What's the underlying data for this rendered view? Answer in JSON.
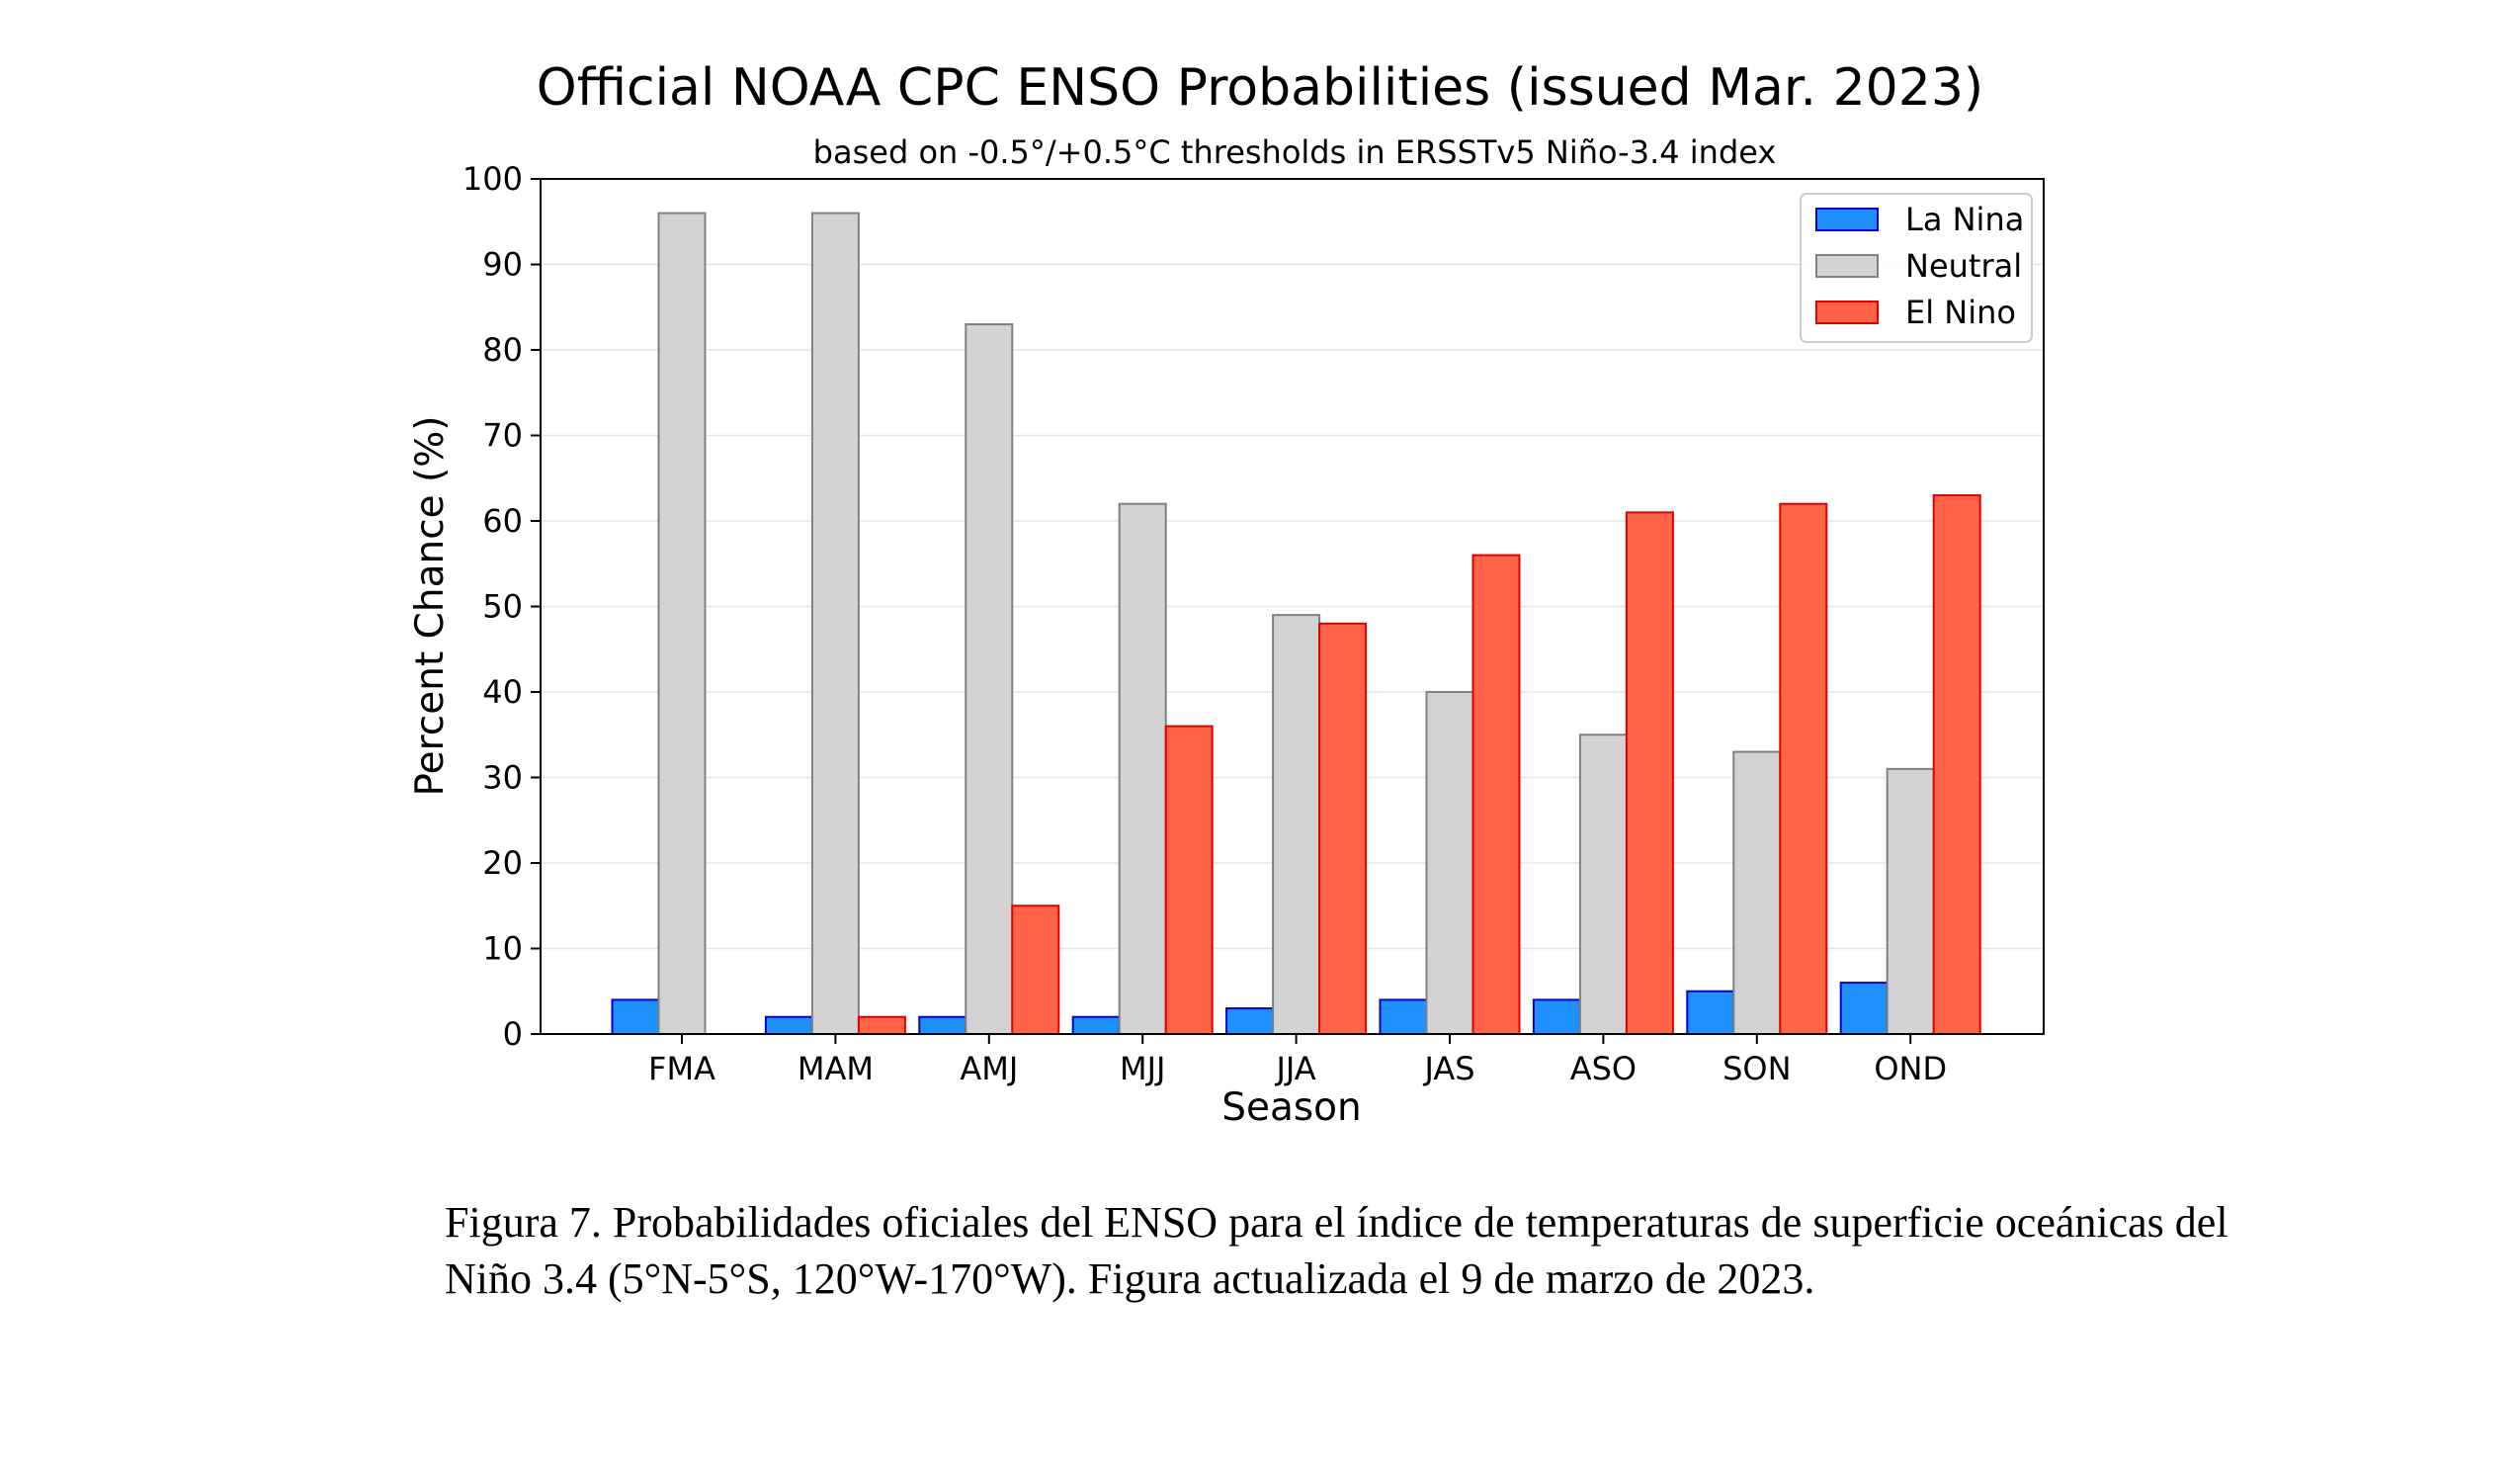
{
  "chart_data": {
    "type": "bar",
    "title": "Official NOAA CPC ENSO Probabilities (issued Mar. 2023)",
    "subtitle": "based on -0.5°/+0.5°C thresholds in ERSSTv5 Niño-3.4 index",
    "xlabel": "Season",
    "ylabel": "Percent Chance (%)",
    "ylim": [
      0,
      100
    ],
    "yticks": [
      "0",
      "10",
      "20",
      "30",
      "40",
      "50",
      "60",
      "70",
      "80",
      "90",
      "100"
    ],
    "categories": [
      "FMA",
      "MAM",
      "AMJ",
      "MJJ",
      "JJA",
      "JAS",
      "ASO",
      "SON",
      "OND"
    ],
    "grid": true,
    "legend_position": "top-right",
    "series": [
      {
        "name": "La Nina",
        "color": "#1e90ff",
        "edge": "#0000cc",
        "values": [
          4,
          2,
          2,
          2,
          3,
          4,
          4,
          5,
          6
        ]
      },
      {
        "name": "Neutral",
        "color": "#d3d3d3",
        "edge": "#808080",
        "values": [
          96,
          96,
          83,
          62,
          49,
          40,
          35,
          33,
          31
        ]
      },
      {
        "name": "El Nino",
        "color": "#ff6347",
        "edge": "#e00000",
        "values": [
          0,
          2,
          15,
          36,
          48,
          56,
          61,
          62,
          63
        ]
      }
    ]
  },
  "caption": "Figura 7. Probabilidades oficiales del ENSO para el índice de temperaturas de superficie oceánicas del Niño 3.4 (5°N-5°S, 120°W-170°W). Figura actualizada el 9 de marzo de 2023."
}
